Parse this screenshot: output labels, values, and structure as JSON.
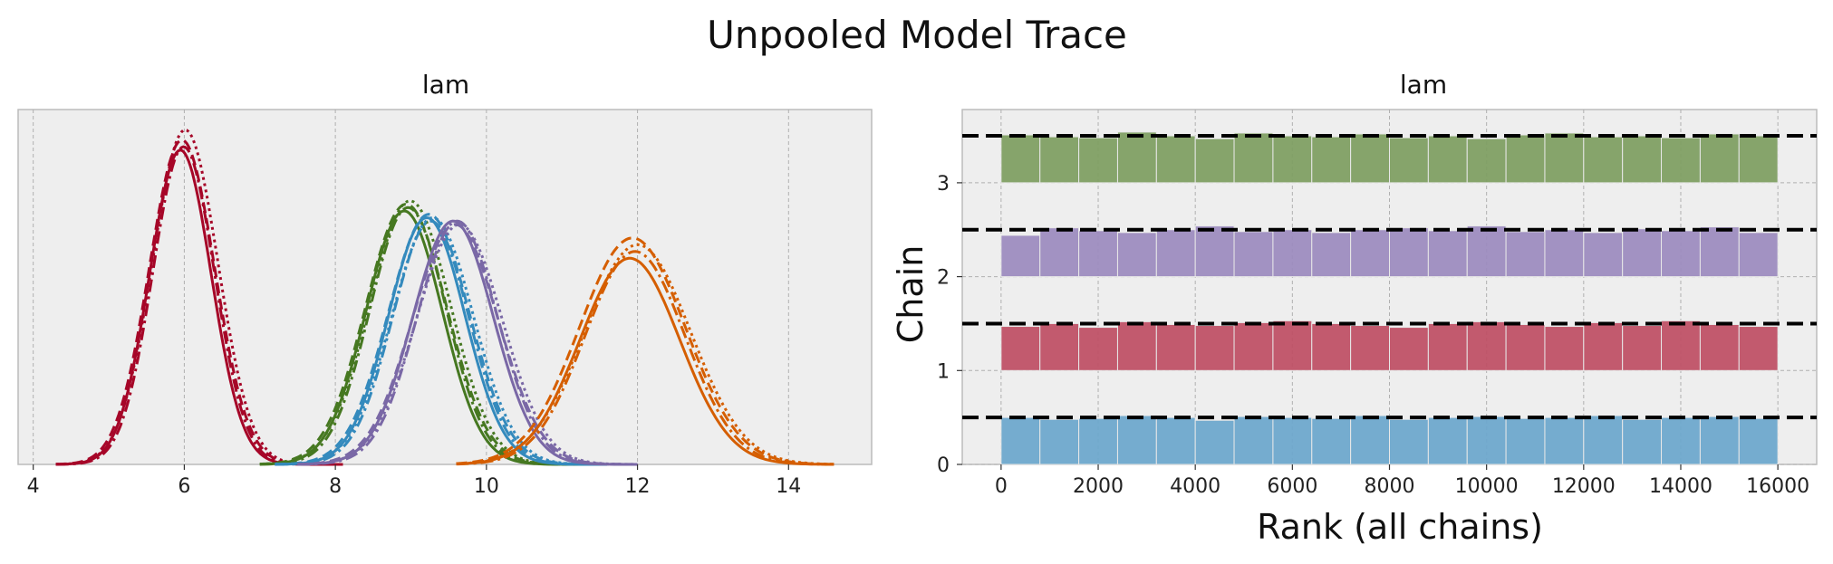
{
  "figure_title": "Unpooled Model Trace",
  "colors": {
    "panel_bg": "#eeeeee",
    "grid": "#b0b0b0",
    "spine": "#bcbcbc",
    "chain_colors": [
      "#348abd",
      "#a60628",
      "#467821",
      "#7a68a6",
      "#d55e00"
    ],
    "rank_colors": [
      "#6ea8cc",
      "#bf5166",
      "#9d8cbf",
      "#7f9f63"
    ],
    "ref_line": "#000000"
  },
  "chart_data": [
    {
      "type": "line",
      "subplot_title": "lam",
      "xticks": [
        4,
        6,
        8,
        10,
        12,
        14
      ],
      "xlim": [
        3.8,
        15.1
      ],
      "ylim": [
        0,
        1.05
      ],
      "yticks_visible": false,
      "grid": "vertical",
      "line_styles": [
        "solid",
        "dashed",
        "dash-dot",
        "dotted"
      ],
      "series": [
        {
          "color": "#a60628",
          "center": 5.98,
          "sd": 0.42,
          "range": [
            4.3,
            8.1
          ],
          "peak": 0.95,
          "chain_peaks": [
            0.93,
            0.96,
            0.94,
            0.99
          ]
        },
        {
          "color": "#467821",
          "center": 8.95,
          "sd": 0.52,
          "range": [
            7.0,
            11.4
          ],
          "peak": 0.75,
          "chain_peaks": [
            0.75,
            0.77,
            0.76,
            0.78
          ]
        },
        {
          "color": "#348abd",
          "center": 9.25,
          "sd": 0.52,
          "range": [
            7.2,
            11.6
          ],
          "peak": 0.74,
          "chain_peaks": [
            0.73,
            0.74,
            0.72,
            0.73
          ]
        },
        {
          "color": "#7a68a6",
          "center": 9.6,
          "sd": 0.55,
          "range": [
            7.5,
            12.0
          ],
          "peak": 0.72,
          "chain_peaks": [
            0.72,
            0.71,
            0.72,
            0.71
          ]
        },
        {
          "color": "#d55e00",
          "center": 11.95,
          "sd": 0.68,
          "range": [
            9.6,
            14.6
          ],
          "peak": 0.61,
          "chain_peaks": [
            0.61,
            0.67,
            0.63,
            0.65
          ]
        }
      ]
    },
    {
      "type": "bar",
      "subplot_title": "lam",
      "xlabel": "Rank (all chains)",
      "ylabel": "Chain",
      "xticks": [
        0,
        2000,
        4000,
        6000,
        8000,
        10000,
        12000,
        14000,
        16000
      ],
      "yticks": [
        0,
        1,
        2,
        3
      ],
      "xlim": [
        -800,
        16800
      ],
      "ylim": [
        0,
        3.78
      ],
      "grid": "both",
      "bins": 20,
      "bin_range": [
        0,
        16000
      ],
      "reference_lines": [
        0.5,
        1.5,
        2.5,
        3.5
      ],
      "series": [
        {
          "chain": 0,
          "color": "#6ea8cc",
          "heights": [
            0.5,
            0.48,
            0.49,
            0.52,
            0.5,
            0.47,
            0.51,
            0.5,
            0.49,
            0.52,
            0.48,
            0.5,
            0.51,
            0.49,
            0.5,
            0.52,
            0.48,
            0.5,
            0.51,
            0.49
          ]
        },
        {
          "chain": 1,
          "color": "#bf5166",
          "heights": [
            0.47,
            0.5,
            0.46,
            0.52,
            0.49,
            0.48,
            0.51,
            0.53,
            0.5,
            0.48,
            0.46,
            0.5,
            0.52,
            0.49,
            0.47,
            0.51,
            0.48,
            0.53,
            0.49,
            0.47
          ]
        },
        {
          "chain": 2,
          "color": "#9d8cbf",
          "heights": [
            0.44,
            0.52,
            0.49,
            0.47,
            0.5,
            0.54,
            0.48,
            0.5,
            0.47,
            0.5,
            0.52,
            0.49,
            0.54,
            0.48,
            0.5,
            0.47,
            0.51,
            0.49,
            0.53,
            0.47
          ]
        },
        {
          "chain": 3,
          "color": "#7f9f63",
          "heights": [
            0.51,
            0.49,
            0.48,
            0.54,
            0.5,
            0.47,
            0.53,
            0.5,
            0.49,
            0.52,
            0.48,
            0.5,
            0.47,
            0.51,
            0.53,
            0.49,
            0.5,
            0.48,
            0.52,
            0.5
          ]
        }
      ]
    }
  ]
}
